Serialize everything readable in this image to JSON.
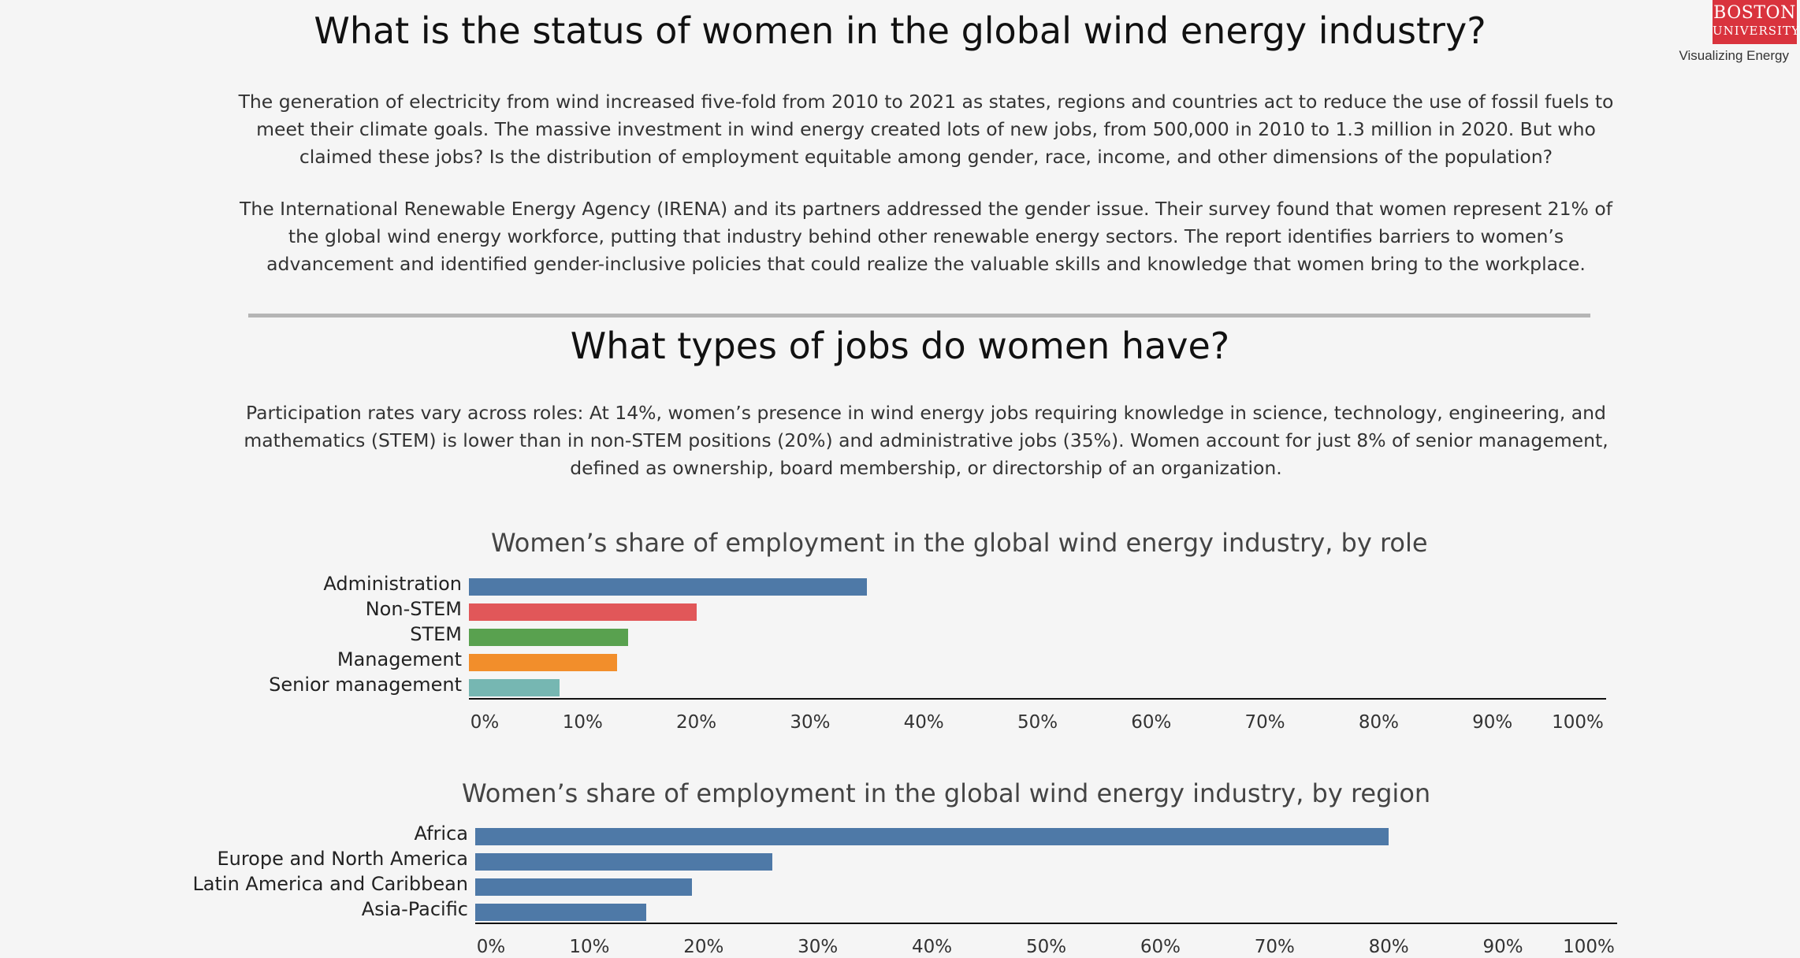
{
  "header": {
    "title": "What is the status of women in the global wind energy industry?",
    "intro_1": "The generation of electricity from wind increased five-fold from 2010 to 2021 as states, regions and countries act to reduce the use of fossil fuels to meet their climate goals. The massive investment in wind energy created lots of new jobs, from 500,000 in 2010 to 1.3 million in 2020. But who claimed these jobs? Is the distribution of employment equitable among gender, race, income, and other dimensions of the population?",
    "intro_2": "The International Renewable Energy Agency (IRENA) and its partners addressed the gender issue. Their survey found that women represent 21% of the global wind energy workforce, putting that industry behind other renewable energy sectors. The report identifies barriers to women’s advancement and identified gender-inclusive policies that could realize the valuable skills and knowledge that women bring to the workplace."
  },
  "section2": {
    "title": "What types of jobs do women have?",
    "text": "Participation rates vary across roles: At 14%, women’s presence in wind energy jobs requiring knowledge in science, technology, engineering, and mathematics (STEM) is lower than in non-STEM positions (20%) and administrative jobs (35%). Women account for just 8% of senior management, defined as ownership, board membership, or directorship of an organization."
  },
  "logo": {
    "line1": "BOSTON",
    "line2": "UNIVERSITY",
    "tagline": "Visualizing Energy",
    "color": "#d9333d"
  },
  "chart_data": [
    {
      "type": "bar",
      "orientation": "horizontal",
      "title": "Women’s share of employment in the global wind energy industry, by role",
      "categories": [
        "Administration",
        "Non-STEM",
        "STEM",
        "Management",
        "Senior management"
      ],
      "values": [
        35,
        20,
        14,
        13,
        8
      ],
      "colors": [
        "#4e79a7",
        "#e15759",
        "#59a14f",
        "#f28e2b",
        "#76b7b2"
      ],
      "xlim": [
        0,
        100
      ],
      "xticks": [
        "0%",
        "10%",
        "20%",
        "30%",
        "40%",
        "50%",
        "60%",
        "70%",
        "80%",
        "90%",
        "100%"
      ]
    },
    {
      "type": "bar",
      "orientation": "horizontal",
      "title": "Women’s share of employment in the global wind energy industry, by region",
      "categories": [
        "Africa",
        "Europe and North America",
        "Latin America and Caribbean",
        "Asia-Pacific"
      ],
      "values": [
        80,
        26,
        19,
        15
      ],
      "colors": [
        "#4e79a7",
        "#4e79a7",
        "#4e79a7",
        "#4e79a7"
      ],
      "xlim": [
        0,
        100
      ],
      "xticks": [
        "0%",
        "10%",
        "20%",
        "30%",
        "40%",
        "50%",
        "60%",
        "70%",
        "80%",
        "90%",
        "100%"
      ]
    }
  ]
}
